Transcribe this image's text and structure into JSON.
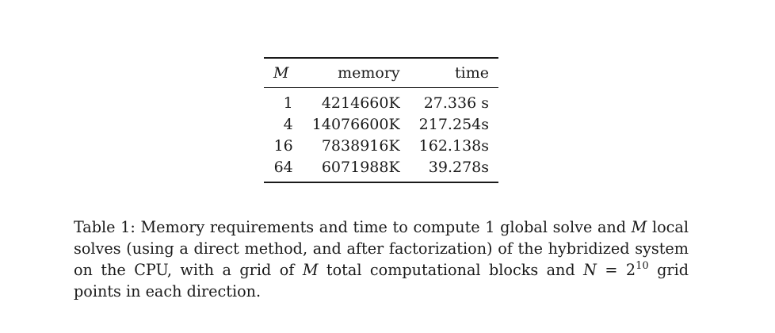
{
  "table": {
    "headers": {
      "m": "M",
      "memory": "memory",
      "time": "time"
    },
    "rows": [
      {
        "m": "1",
        "memory": "4214660K",
        "time": "27.336 s"
      },
      {
        "m": "4",
        "memory": "14076600K",
        "time": "217.254s"
      },
      {
        "m": "16",
        "memory": "7838916K",
        "time": "162.138s"
      },
      {
        "m": "64",
        "memory": "6071988K",
        "time": "39.278s"
      }
    ]
  },
  "caption": {
    "part1": "Table 1: Memory requirements and time to compute 1 global solve and ",
    "var_m1": "M",
    "part2": " local solves (using a direct method, and after factorization) of the hybridized system on the CPU, with a grid of ",
    "var_m2": "M",
    "part3": " total computational blocks and ",
    "var_n": "N",
    "part4": " = 2",
    "exponent": "10",
    "part5": " grid points in each direction."
  }
}
